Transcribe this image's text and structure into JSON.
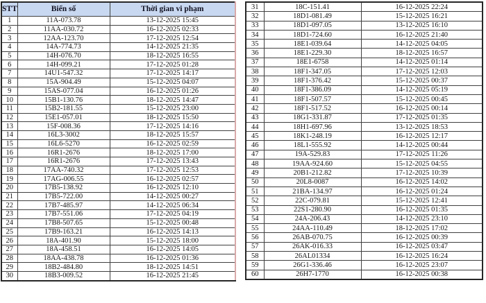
{
  "columns": [
    "stt",
    "plate",
    "time"
  ],
  "header": {
    "stt": "STT",
    "plate": "Biển số",
    "time": "Thời gian vi phạm"
  },
  "colors": {
    "header_bg": "#c8d8f0",
    "border_dark": "#3f3f3f",
    "text": "#141414",
    "left_edge": "#d9a9a9"
  },
  "left_rows": [
    {
      "stt": "1",
      "plate": "11A-073.78",
      "time": "13-12-2025 15:45"
    },
    {
      "stt": "2",
      "plate": "11AA-030.72",
      "time": "16-12-2025 02:33"
    },
    {
      "stt": "3",
      "plate": "12AA-123.70",
      "time": "17-12-2025 12:54"
    },
    {
      "stt": "4",
      "plate": "14A-774.73",
      "time": "14-12-2025 21:35"
    },
    {
      "stt": "5",
      "plate": "14H-076.70",
      "time": "18-12-2025 16:55"
    },
    {
      "stt": "6",
      "plate": "14H-099.21",
      "time": "17-12-2025 01:28"
    },
    {
      "stt": "7",
      "plate": "14U1-547.32",
      "time": "17-12-2025 14:17"
    },
    {
      "stt": "8",
      "plate": "15A-904.49",
      "time": "15-12-2025 04:07"
    },
    {
      "stt": "9",
      "plate": "15AS-077.04",
      "time": "16-12-2025 01:26"
    },
    {
      "stt": "10",
      "plate": "15B1-130.76",
      "time": "18-12-2025 14:47"
    },
    {
      "stt": "11",
      "plate": "15B2-181.55",
      "time": "15-12-2025 23:00"
    },
    {
      "stt": "12",
      "plate": "15E1-057.01",
      "time": "18-12-2025 15:50"
    },
    {
      "stt": "13",
      "plate": "15F-008.36",
      "time": "17-12-2025 14:16"
    },
    {
      "stt": "14",
      "plate": "16L3-3002",
      "time": "18-12-2025 15:57"
    },
    {
      "stt": "15",
      "plate": "16L6-5270",
      "time": "16-12-2025 02:59"
    },
    {
      "stt": "16",
      "plate": "16R1-2676",
      "time": "18-12-2025 17:00"
    },
    {
      "stt": "17",
      "plate": "16R1-2676",
      "time": "17-12-2025 13:43"
    },
    {
      "stt": "18",
      "plate": "17AA-740.32",
      "time": "17-12-2025 12:53"
    },
    {
      "stt": "19",
      "plate": "17AG-006.55",
      "time": "16-12-2025 02:57"
    },
    {
      "stt": "20",
      "plate": "17B5-138.92",
      "time": "16-12-2025 12:10"
    },
    {
      "stt": "21",
      "plate": "17B5-722.00",
      "time": "14-12-2025 00:27"
    },
    {
      "stt": "22",
      "plate": "17B7-485.97",
      "time": "14-12-2025 06:34"
    },
    {
      "stt": "23",
      "plate": "17B7-551.06",
      "time": "17-12-2025 04:19"
    },
    {
      "stt": "24",
      "plate": "17B8-507.65",
      "time": "15-12-2025 00:48"
    },
    {
      "stt": "25",
      "plate": "17B9-163.21",
      "time": "16-12-2025 14:13"
    },
    {
      "stt": "26",
      "plate": "18A-401.90",
      "time": "15-12-2025 18:00"
    },
    {
      "stt": "27",
      "plate": "18A-458.51",
      "time": "16-12-2025 14:05"
    },
    {
      "stt": "28",
      "plate": "18AA-438.78",
      "time": "16-12-2025 01:36"
    },
    {
      "stt": "29",
      "plate": "18B2-484.80",
      "time": "18-12-2025 14:51"
    },
    {
      "stt": "30",
      "plate": "18B3-009.52",
      "time": "16-12-2025 21:45"
    }
  ],
  "right_rows": [
    {
      "stt": "31",
      "plate": "18C-151.41",
      "time": "16-12-2025 22:24"
    },
    {
      "stt": "32",
      "plate": "18D1-081.49",
      "time": "15-12-2025 16:21"
    },
    {
      "stt": "33",
      "plate": "18D1-097.05",
      "time": "13-12-2025 16:10"
    },
    {
      "stt": "34",
      "plate": "18D1-724.60",
      "time": "16-12-2025 21:40"
    },
    {
      "stt": "35",
      "plate": "18E1-039.64",
      "time": "14-12-2025 04:05"
    },
    {
      "stt": "36",
      "plate": "18E1-229.30",
      "time": "18-12-2025 16:57"
    },
    {
      "stt": "37",
      "plate": "18E1-6758",
      "time": "14-12-2025 01:14"
    },
    {
      "stt": "38",
      "plate": "18F1-347.05",
      "time": "17-12-2025 12:03"
    },
    {
      "stt": "39",
      "plate": "18F1-376.42",
      "time": "15-12-2025 00:37"
    },
    {
      "stt": "40",
      "plate": "18F1-386.09",
      "time": "14-12-2025 05:19"
    },
    {
      "stt": "41",
      "plate": "18F1-507.57",
      "time": "15-12-2025 00:45"
    },
    {
      "stt": "42",
      "plate": "18F1-517.52",
      "time": "16-12-2025 00:14"
    },
    {
      "stt": "43",
      "plate": "18G1-331.87",
      "time": "17-12-2025 01:35"
    },
    {
      "stt": "44",
      "plate": "18H1-697.96",
      "time": "13-12-2025 18:53"
    },
    {
      "stt": "45",
      "plate": "18K1-248.19",
      "time": "16-12-2025 12:17"
    },
    {
      "stt": "46",
      "plate": "18L1-555.92",
      "time": "14-12-2025 00:44"
    },
    {
      "stt": "47",
      "plate": "19A-529.83",
      "time": "17-12-2025 11:26"
    },
    {
      "stt": "48",
      "plate": "19AA-924.60",
      "time": "15-12-2025 04:55"
    },
    {
      "stt": "49",
      "plate": "20B1-212.82",
      "time": "17-12-2025 10:39"
    },
    {
      "stt": "50",
      "plate": "20L8-0087",
      "time": "16-12-2025 14:02"
    },
    {
      "stt": "51",
      "plate": "21BA-134.97",
      "time": "16-12-2025 01:24"
    },
    {
      "stt": "52",
      "plate": "22C-079.81",
      "time": "15-12-2025 12:41"
    },
    {
      "stt": "53",
      "plate": "22S1-280.90",
      "time": "16-12-2025 01:35"
    },
    {
      "stt": "54",
      "plate": "24A-206.43",
      "time": "14-12-2025 23:10"
    },
    {
      "stt": "55",
      "plate": "24AA-110.49",
      "time": "18-12-2025 17:02"
    },
    {
      "stt": "56",
      "plate": "26AB-070.75",
      "time": "16-12-2025 00:39"
    },
    {
      "stt": "57",
      "plate": "26AK-016.33",
      "time": "16-12-2025 03:47"
    },
    {
      "stt": "58",
      "plate": "26AL01334",
      "time": "16-12-2025 16:24"
    },
    {
      "stt": "59",
      "plate": "26G1-336.46",
      "time": "16-12-2025 23:07"
    },
    {
      "stt": "60",
      "plate": "26H7-1770",
      "time": "16-12-2025 00:38"
    }
  ]
}
